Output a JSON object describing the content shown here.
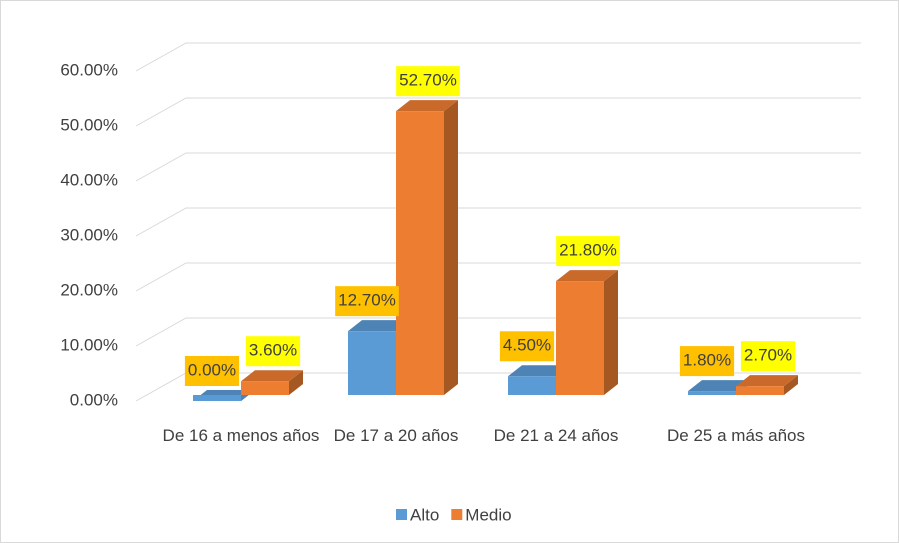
{
  "chart_data": {
    "type": "bar3d",
    "categories": [
      "De 16 a menos años",
      "De 17 a 20 años",
      "De 21 a 24 años",
      "De 25 a más años"
    ],
    "series": [
      {
        "name": "Alto",
        "color": "#5b9bd5",
        "label_bg": "#ffc000",
        "values": [
          0,
          12.7,
          4.5,
          1.8
        ],
        "value_labels": [
          "0.00%",
          "12.70%",
          "4.50%",
          "1.80%"
        ]
      },
      {
        "name": "Medio",
        "color": "#ed7d31",
        "label_bg": "#ffff00",
        "values": [
          3.6,
          52.7,
          21.8,
          2.7
        ],
        "value_labels": [
          "3.60%",
          "52.70%",
          "21.80%",
          "2.70%"
        ]
      }
    ],
    "ylim": [
      0,
      60
    ],
    "yticks": [
      {
        "value": 0,
        "label": "0.00%"
      },
      {
        "value": 10,
        "label": "10.00%"
      },
      {
        "value": 20,
        "label": "20.00%"
      },
      {
        "value": 30,
        "label": "30.00%"
      },
      {
        "value": 40,
        "label": "40.00%"
      },
      {
        "value": 50,
        "label": "50.00%"
      },
      {
        "value": 60,
        "label": "60.00%"
      }
    ],
    "grid": true,
    "legend": "bottom"
  }
}
